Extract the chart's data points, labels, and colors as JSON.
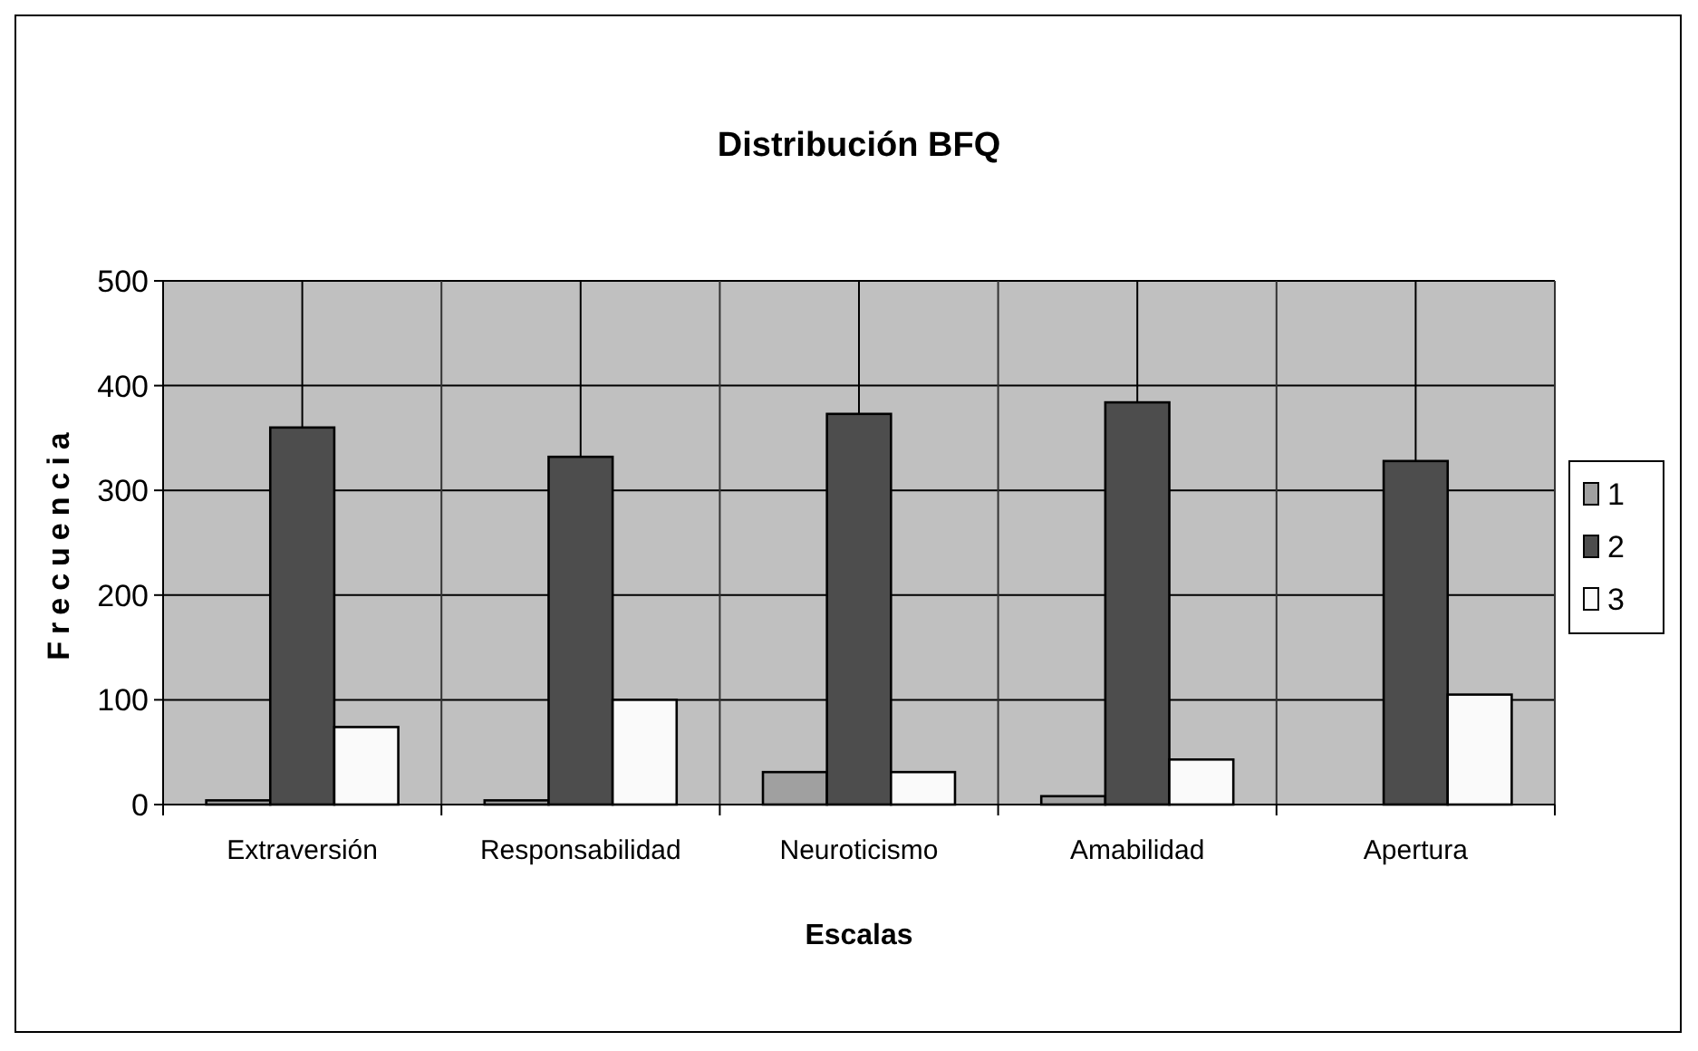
{
  "chart_data": {
    "type": "bar",
    "title": "Distribución BFQ",
    "xlabel": "Escalas",
    "ylabel": "Frecuencia",
    "categories": [
      "Extraversión",
      "Responsabilidad",
      "Neuroticismo",
      "Amabilidad",
      "Apertura"
    ],
    "series": [
      {
        "name": "1",
        "color": "#a0a0a0",
        "values": [
          4,
          4,
          31,
          8,
          0
        ]
      },
      {
        "name": "2",
        "color": "#4d4d4d",
        "values": [
          360,
          332,
          373,
          384,
          328
        ]
      },
      {
        "name": "3",
        "color": "#fafafa",
        "values": [
          74,
          100,
          31,
          43,
          105
        ]
      }
    ],
    "ylim": [
      0,
      500
    ],
    "yticks": [
      0,
      100,
      200,
      300,
      400,
      500
    ],
    "grid": true,
    "legend": "right"
  }
}
